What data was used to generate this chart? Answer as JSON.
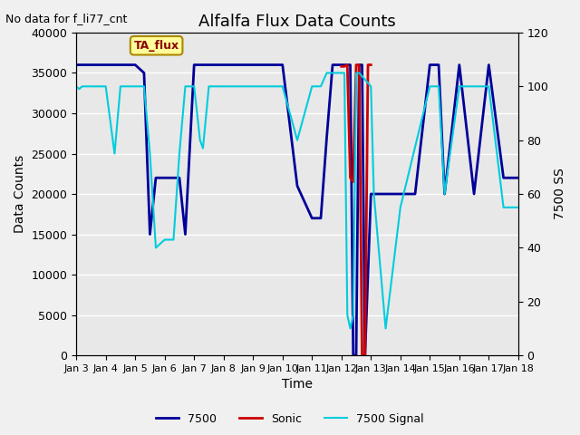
{
  "title": "Alfalfa Flux Data Counts",
  "subtitle": "No data for f_li77_cnt",
  "xlabel": "Time",
  "ylabel_left": "Data Counts",
  "ylabel_right": "7500 SS",
  "ylim_left": [
    0,
    40000
  ],
  "ylim_right": [
    0,
    120
  ],
  "bg_color": "#e8e8e8",
  "legend_box_label": "TA_flux",
  "legend_box_color": "#ffff99",
  "legend_box_border": "#aa8800",
  "sonic_color": "#cc0000",
  "li7500_color": "#000099",
  "signal_color": "#00ccdd",
  "sonic_data": {
    "x": [
      12.0,
      12.1,
      12.2,
      12.3,
      12.4,
      12.5,
      12.6,
      12.7,
      12.8,
      12.9,
      13.0
    ],
    "y": [
      35800,
      35800,
      36000,
      22000,
      21500,
      36000,
      36000,
      0,
      0,
      36000,
      36000
    ]
  },
  "li7500_data": {
    "x": [
      3.0,
      3.5,
      4.0,
      4.5,
      5.0,
      5.3,
      5.5,
      5.7,
      6.0,
      6.3,
      6.5,
      6.7,
      7.0,
      7.3,
      7.5,
      7.7,
      8.0,
      9.0,
      10.0,
      10.5,
      11.0,
      11.3,
      11.5,
      11.7,
      12.0,
      12.1,
      12.2,
      12.3,
      12.4,
      12.5,
      12.6,
      12.7,
      12.8,
      13.0,
      13.5,
      14.0,
      14.5,
      15.0,
      15.3,
      15.5,
      16.0,
      16.5,
      17.0,
      17.5,
      18.0
    ],
    "y": [
      36000,
      36000,
      36000,
      36000,
      36000,
      35000,
      15000,
      22000,
      22000,
      22000,
      22000,
      15000,
      36000,
      36000,
      36000,
      36000,
      36000,
      36000,
      36000,
      21000,
      17000,
      17000,
      27000,
      36000,
      36000,
      36000,
      36000,
      36000,
      0,
      0,
      36000,
      36000,
      0,
      20000,
      20000,
      20000,
      20000,
      36000,
      36000,
      20000,
      36000,
      20000,
      36000,
      22000,
      22000
    ]
  },
  "signal_data": {
    "x": [
      3.0,
      3.1,
      3.2,
      3.3,
      3.5,
      4.0,
      4.3,
      4.5,
      5.0,
      5.3,
      5.5,
      5.7,
      6.0,
      6.3,
      6.5,
      6.7,
      7.0,
      7.2,
      7.3,
      7.5,
      7.7,
      7.8,
      8.0,
      9.0,
      10.0,
      10.5,
      11.0,
      11.3,
      11.5,
      11.7,
      12.0,
      12.1,
      12.2,
      12.3,
      12.4,
      12.5,
      12.6,
      13.0,
      13.1,
      13.5,
      14.0,
      15.0,
      15.3,
      15.5,
      16.0,
      16.5,
      17.0,
      17.5,
      18.0
    ],
    "y": [
      100,
      99,
      100,
      100,
      100,
      100,
      75,
      100,
      100,
      100,
      75,
      40,
      43,
      43,
      75,
      100,
      100,
      80,
      77,
      100,
      100,
      100,
      100,
      100,
      100,
      80,
      100,
      100,
      105,
      105,
      105,
      105,
      15,
      10,
      15,
      105,
      105,
      100,
      60,
      10,
      55,
      100,
      100,
      60,
      100,
      100,
      100,
      55,
      55
    ]
  },
  "xtick_labels": [
    "Jan 3",
    "Jan 4",
    "Jan 5",
    "Jan 6",
    "Jan 7",
    "Jan 8",
    "Jan 9",
    "Jan 10",
    "Jan 11",
    "Jan 12",
    "Jan 13",
    "Jan 14",
    "Jan 15",
    "Jan 16",
    "Jan 17",
    "Jan 18"
  ],
  "xtick_positions": [
    3,
    4,
    5,
    6,
    7,
    8,
    9,
    10,
    11,
    12,
    13,
    14,
    15,
    16,
    17,
    18
  ],
  "yticks_left": [
    0,
    5000,
    10000,
    15000,
    20000,
    25000,
    30000,
    35000,
    40000
  ],
  "yticks_right": [
    0,
    20,
    40,
    60,
    80,
    100,
    120
  ]
}
